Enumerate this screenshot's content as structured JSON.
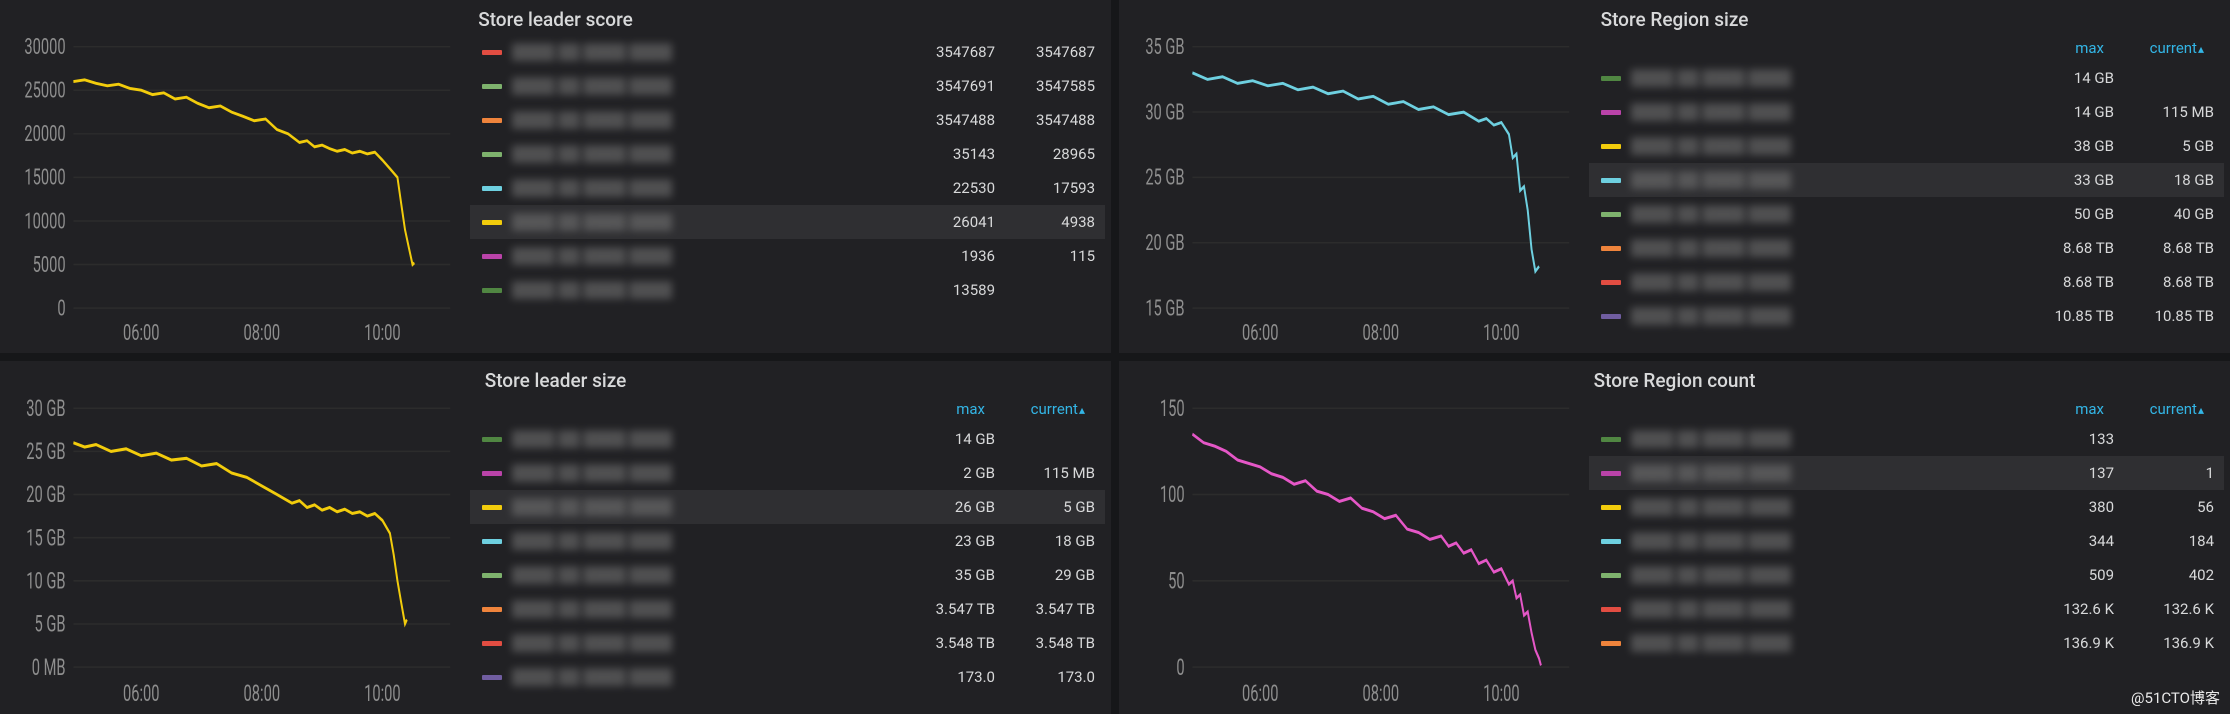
{
  "watermark": "@51CTO博客",
  "colors": {
    "bg": "#161719",
    "panel": "#212124",
    "grid": "#2c2c2c",
    "axis": "#8e8e8e",
    "header": "#33b5e5"
  },
  "panels": [
    {
      "id": "store-leader-score",
      "title": "Store leader score",
      "yTicks": [
        0,
        5000,
        10000,
        15000,
        20000,
        25000,
        30000
      ],
      "yTickLabels": [
        "0",
        "5000",
        "10000",
        "15000",
        "20000",
        "25000",
        "30000"
      ],
      "yRange": [
        0,
        30000
      ],
      "xTicks": [
        "06:00",
        "08:00",
        "10:00"
      ],
      "header": null,
      "line": {
        "color": "#f2cc0c",
        "points": [
          [
            0,
            26000
          ],
          [
            0.03,
            26200
          ],
          [
            0.06,
            25800
          ],
          [
            0.09,
            25500
          ],
          [
            0.12,
            25700
          ],
          [
            0.15,
            25200
          ],
          [
            0.18,
            25000
          ],
          [
            0.21,
            24500
          ],
          [
            0.24,
            24700
          ],
          [
            0.27,
            24000
          ],
          [
            0.3,
            24200
          ],
          [
            0.33,
            23500
          ],
          [
            0.36,
            23000
          ],
          [
            0.39,
            23200
          ],
          [
            0.42,
            22500
          ],
          [
            0.45,
            22000
          ],
          [
            0.48,
            21500
          ],
          [
            0.51,
            21700
          ],
          [
            0.54,
            20500
          ],
          [
            0.57,
            20000
          ],
          [
            0.6,
            19000
          ],
          [
            0.62,
            19200
          ],
          [
            0.64,
            18500
          ],
          [
            0.66,
            18700
          ],
          [
            0.68,
            18300
          ],
          [
            0.7,
            18000
          ],
          [
            0.72,
            18200
          ],
          [
            0.74,
            17800
          ],
          [
            0.76,
            18000
          ],
          [
            0.78,
            17700
          ],
          [
            0.8,
            17900
          ],
          [
            0.82,
            17000
          ],
          [
            0.84,
            16000
          ],
          [
            0.86,
            15000
          ],
          [
            0.87,
            12000
          ],
          [
            0.88,
            9000
          ],
          [
            0.89,
            7000
          ],
          [
            0.9,
            5000
          ],
          [
            0.905,
            5200
          ]
        ]
      },
      "series": [
        {
          "color": "#e24d42",
          "name": "████ ██ ████ ████",
          "vals": [
            "3547687",
            "3547687"
          ],
          "hl": false
        },
        {
          "color": "#7eb26d",
          "name": "████ ██ ████ ████",
          "vals": [
            "3547691",
            "3547585"
          ],
          "hl": false
        },
        {
          "color": "#ef843c",
          "name": "████ ██ ████ ████",
          "vals": [
            "3547488",
            "3547488"
          ],
          "hl": false
        },
        {
          "color": "#7eb26d",
          "name": "████ ██ ████ ████",
          "vals": [
            "35143",
            "28965"
          ],
          "hl": false
        },
        {
          "color": "#6ed0e0",
          "name": "████ ██ ████ ████",
          "vals": [
            "22530",
            "17593"
          ],
          "hl": false
        },
        {
          "color": "#f2cc0c",
          "name": "████ ██ ████ ████",
          "vals": [
            "26041",
            "4938"
          ],
          "hl": true
        },
        {
          "color": "#ba43a9",
          "name": "████ ██ ████ ████",
          "vals": [
            "1936",
            "115"
          ],
          "hl": false
        },
        {
          "color": "#508642",
          "name": "████ ██ ████ ████",
          "vals": [
            "13589",
            ""
          ],
          "hl": false
        }
      ]
    },
    {
      "id": "store-region-size",
      "title": "Store Region size",
      "yTicks": [
        15,
        20,
        25,
        30,
        35
      ],
      "yTickLabels": [
        "15 GB",
        "20 GB",
        "25 GB",
        "30 GB",
        "35 GB"
      ],
      "yRange": [
        15,
        35
      ],
      "xTicks": [
        "06:00",
        "08:00",
        "10:00"
      ],
      "header": {
        "cols": [
          "max",
          "current"
        ],
        "sortCol": 1
      },
      "line": {
        "color": "#6ed0e0",
        "points": [
          [
            0,
            33.0
          ],
          [
            0.04,
            32.5
          ],
          [
            0.08,
            32.7
          ],
          [
            0.12,
            32.2
          ],
          [
            0.16,
            32.4
          ],
          [
            0.2,
            32.0
          ],
          [
            0.24,
            32.2
          ],
          [
            0.28,
            31.7
          ],
          [
            0.32,
            31.9
          ],
          [
            0.36,
            31.4
          ],
          [
            0.4,
            31.6
          ],
          [
            0.44,
            31.0
          ],
          [
            0.48,
            31.2
          ],
          [
            0.52,
            30.6
          ],
          [
            0.56,
            30.8
          ],
          [
            0.6,
            30.2
          ],
          [
            0.64,
            30.4
          ],
          [
            0.68,
            29.8
          ],
          [
            0.72,
            30.0
          ],
          [
            0.76,
            29.3
          ],
          [
            0.78,
            29.5
          ],
          [
            0.8,
            29.0
          ],
          [
            0.82,
            29.2
          ],
          [
            0.84,
            28.3
          ],
          [
            0.85,
            26.5
          ],
          [
            0.86,
            26.8
          ],
          [
            0.87,
            24.0
          ],
          [
            0.88,
            24.3
          ],
          [
            0.89,
            22.5
          ],
          [
            0.9,
            19.5
          ],
          [
            0.91,
            17.8
          ],
          [
            0.92,
            18.2
          ]
        ]
      },
      "series": [
        {
          "color": "#508642",
          "name": "████ ██ ████ ████",
          "vals": [
            "14 GB",
            ""
          ],
          "hl": false
        },
        {
          "color": "#ba43a9",
          "name": "████ ██ ████ ████",
          "vals": [
            "14 GB",
            "115 MB"
          ],
          "hl": false
        },
        {
          "color": "#f2cc0c",
          "name": "████ ██ ████ ████",
          "vals": [
            "38 GB",
            "5 GB"
          ],
          "hl": false
        },
        {
          "color": "#6ed0e0",
          "name": "████ ██ ████ ████",
          "vals": [
            "33 GB",
            "18 GB"
          ],
          "hl": true
        },
        {
          "color": "#7eb26d",
          "name": "████ ██ ████ ████",
          "vals": [
            "50 GB",
            "40 GB"
          ],
          "hl": false
        },
        {
          "color": "#ef843c",
          "name": "████ ██ ████ ████",
          "vals": [
            "8.68 TB",
            "8.68 TB"
          ],
          "hl": false
        },
        {
          "color": "#e24d42",
          "name": "████ ██ ████ ████",
          "vals": [
            "8.68 TB",
            "8.68 TB"
          ],
          "hl": false
        },
        {
          "color": "#705da0",
          "name": "████ ██ ████ ████",
          "vals": [
            "10.85 TB",
            "10.85 TB"
          ],
          "hl": false
        }
      ]
    },
    {
      "id": "store-leader-size",
      "title": "Store leader size",
      "yTicks": [
        0,
        5,
        10,
        15,
        20,
        25,
        30
      ],
      "yTickLabels": [
        "0 MB",
        "5 GB",
        "10 GB",
        "15 GB",
        "20 GB",
        "25 GB",
        "30 GB"
      ],
      "yRange": [
        0,
        30
      ],
      "xTicks": [
        "06:00",
        "08:00",
        "10:00"
      ],
      "header": {
        "cols": [
          "max",
          "current"
        ],
        "sortCol": 1
      },
      "line": {
        "color": "#f2cc0c",
        "points": [
          [
            0,
            26.0
          ],
          [
            0.03,
            25.5
          ],
          [
            0.06,
            25.8
          ],
          [
            0.1,
            25.0
          ],
          [
            0.14,
            25.3
          ],
          [
            0.18,
            24.5
          ],
          [
            0.22,
            24.8
          ],
          [
            0.26,
            24.0
          ],
          [
            0.3,
            24.2
          ],
          [
            0.34,
            23.3
          ],
          [
            0.38,
            23.6
          ],
          [
            0.42,
            22.5
          ],
          [
            0.46,
            22.0
          ],
          [
            0.5,
            21.0
          ],
          [
            0.54,
            20.0
          ],
          [
            0.58,
            19.0
          ],
          [
            0.6,
            19.3
          ],
          [
            0.62,
            18.5
          ],
          [
            0.64,
            18.8
          ],
          [
            0.66,
            18.2
          ],
          [
            0.68,
            18.5
          ],
          [
            0.7,
            18.0
          ],
          [
            0.72,
            18.3
          ],
          [
            0.74,
            17.8
          ],
          [
            0.76,
            18.0
          ],
          [
            0.78,
            17.5
          ],
          [
            0.8,
            17.8
          ],
          [
            0.82,
            17.0
          ],
          [
            0.84,
            15.5
          ],
          [
            0.85,
            13.0
          ],
          [
            0.86,
            10.0
          ],
          [
            0.87,
            7.5
          ],
          [
            0.88,
            5.0
          ],
          [
            0.885,
            5.5
          ]
        ]
      },
      "series": [
        {
          "color": "#508642",
          "name": "████ ██ ████ ████",
          "vals": [
            "14 GB",
            ""
          ],
          "hl": false
        },
        {
          "color": "#ba43a9",
          "name": "████ ██ ████ ████",
          "vals": [
            "2 GB",
            "115 MB"
          ],
          "hl": false
        },
        {
          "color": "#f2cc0c",
          "name": "████ ██ ████ ████",
          "vals": [
            "26 GB",
            "5 GB"
          ],
          "hl": true
        },
        {
          "color": "#6ed0e0",
          "name": "████ ██ ████ ████",
          "vals": [
            "23 GB",
            "18 GB"
          ],
          "hl": false
        },
        {
          "color": "#7eb26d",
          "name": "████ ██ ████ ████",
          "vals": [
            "35 GB",
            "29 GB"
          ],
          "hl": false
        },
        {
          "color": "#ef843c",
          "name": "████ ██ ████ ████",
          "vals": [
            "3.547 TB",
            "3.547 TB"
          ],
          "hl": false
        },
        {
          "color": "#e24d42",
          "name": "████ ██ ████ ████",
          "vals": [
            "3.548 TB",
            "3.548 TB"
          ],
          "hl": false
        },
        {
          "color": "#705da0",
          "name": "████ ██ ████ ████",
          "vals": [
            "173.0",
            "173.0"
          ],
          "hl": false
        }
      ]
    },
    {
      "id": "store-region-count",
      "title": "Store Region count",
      "yTicks": [
        0,
        50,
        100,
        150
      ],
      "yTickLabels": [
        "0",
        "50",
        "100",
        "150"
      ],
      "yRange": [
        0,
        150
      ],
      "xTicks": [
        "06:00",
        "08:00",
        "10:00"
      ],
      "header": {
        "cols": [
          "max",
          "current"
        ],
        "sortCol": 1
      },
      "line": {
        "color": "#e557c7",
        "points": [
          [
            0.0,
            135
          ],
          [
            0.03,
            130
          ],
          [
            0.06,
            128
          ],
          [
            0.09,
            125
          ],
          [
            0.12,
            120
          ],
          [
            0.15,
            118
          ],
          [
            0.18,
            116
          ],
          [
            0.21,
            112
          ],
          [
            0.24,
            110
          ],
          [
            0.27,
            106
          ],
          [
            0.3,
            108
          ],
          [
            0.33,
            102
          ],
          [
            0.36,
            100
          ],
          [
            0.39,
            96
          ],
          [
            0.42,
            98
          ],
          [
            0.45,
            92
          ],
          [
            0.48,
            90
          ],
          [
            0.51,
            86
          ],
          [
            0.54,
            88
          ],
          [
            0.57,
            80
          ],
          [
            0.6,
            78
          ],
          [
            0.63,
            74
          ],
          [
            0.66,
            76
          ],
          [
            0.68,
            70
          ],
          [
            0.7,
            72
          ],
          [
            0.72,
            66
          ],
          [
            0.74,
            68
          ],
          [
            0.76,
            60
          ],
          [
            0.78,
            62
          ],
          [
            0.8,
            55
          ],
          [
            0.82,
            57
          ],
          [
            0.84,
            48
          ],
          [
            0.85,
            50
          ],
          [
            0.86,
            40
          ],
          [
            0.87,
            42
          ],
          [
            0.88,
            30
          ],
          [
            0.89,
            32
          ],
          [
            0.9,
            20
          ],
          [
            0.91,
            10
          ],
          [
            0.92,
            5
          ],
          [
            0.925,
            1
          ]
        ]
      },
      "series": [
        {
          "color": "#508642",
          "name": "████ ██ ████ ████",
          "vals": [
            "133",
            ""
          ],
          "hl": false
        },
        {
          "color": "#ba43a9",
          "name": "████ ██ ████ ████",
          "vals": [
            "137",
            "1"
          ],
          "hl": true
        },
        {
          "color": "#f2cc0c",
          "name": "████ ██ ████ ████",
          "vals": [
            "380",
            "56"
          ],
          "hl": false
        },
        {
          "color": "#6ed0e0",
          "name": "████ ██ ████ ████",
          "vals": [
            "344",
            "184"
          ],
          "hl": false
        },
        {
          "color": "#7eb26d",
          "name": "████ ██ ████ ████",
          "vals": [
            "509",
            "402"
          ],
          "hl": false
        },
        {
          "color": "#e24d42",
          "name": "████ ██ ████ ████",
          "vals": [
            "132.6 K",
            "132.6 K"
          ],
          "hl": false
        },
        {
          "color": "#ef843c",
          "name": "████ ██ ████ ████",
          "vals": [
            "136.9 K",
            "136.9 K"
          ],
          "hl": false
        }
      ]
    }
  ]
}
